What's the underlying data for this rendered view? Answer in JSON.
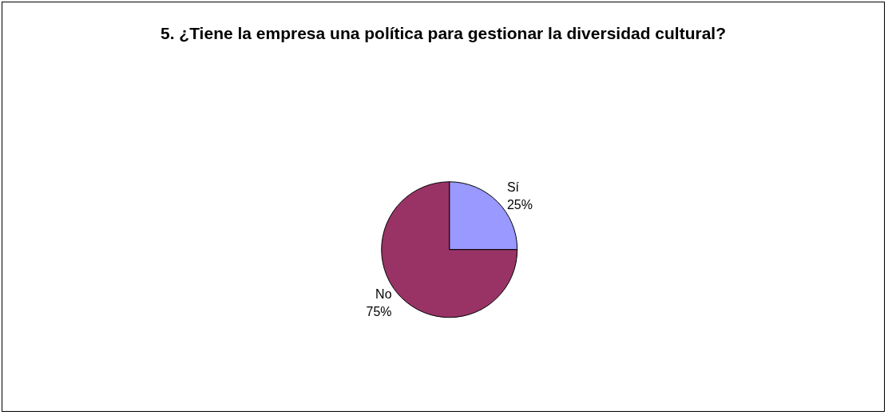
{
  "chart_data": {
    "type": "pie",
    "title": "5. ¿Tiene la empresa una política para gestionar la diversidad cultural?",
    "categories": [
      "Sí",
      "No"
    ],
    "values": [
      25,
      75
    ],
    "value_labels": [
      "25%",
      "75%"
    ],
    "colors": [
      "#9999ff",
      "#993366"
    ],
    "data_labels": true,
    "legend": false
  }
}
